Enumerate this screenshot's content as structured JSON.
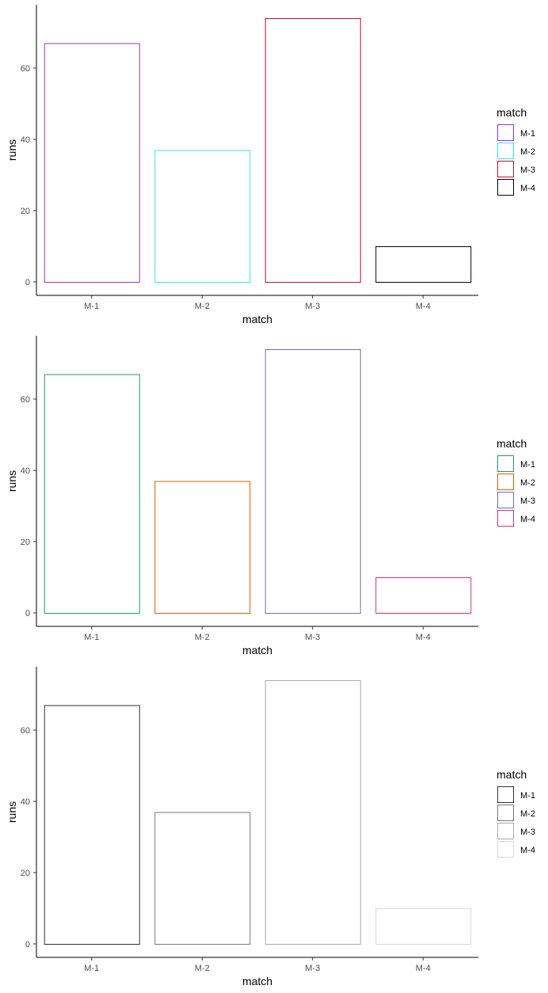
{
  "chart_data": [
    {
      "type": "bar",
      "categories": [
        "M-1",
        "M-2",
        "M-3",
        "M-4"
      ],
      "values": [
        67,
        37,
        74,
        10
      ],
      "colors": [
        "#9b30d0",
        "#33e6f0",
        "#c8102e",
        "#000033"
      ],
      "xlabel": "match",
      "ylabel": "runs",
      "ylim": [
        0,
        78
      ],
      "yticks": [
        0,
        20,
        40,
        60
      ],
      "fill": "none",
      "grid": false,
      "legend": {
        "title": "match",
        "labels": [
          "M-1",
          "M-2",
          "M-3",
          "M-4"
        ],
        "position": "right"
      }
    },
    {
      "type": "bar",
      "categories": [
        "M-1",
        "M-2",
        "M-3",
        "M-4"
      ],
      "values": [
        67,
        37,
        74,
        10
      ],
      "colors": [
        "#1b9e77",
        "#d95f02",
        "#7570b3",
        "#e7298a"
      ],
      "xlabel": "match",
      "ylabel": "runs",
      "ylim": [
        0,
        78
      ],
      "yticks": [
        0,
        20,
        40,
        60
      ],
      "fill": "none",
      "grid": false,
      "legend": {
        "title": "match",
        "labels": [
          "M-1",
          "M-2",
          "M-3",
          "M-4"
        ],
        "position": "right"
      }
    },
    {
      "type": "bar",
      "categories": [
        "M-1",
        "M-2",
        "M-3",
        "M-4"
      ],
      "values": [
        67,
        37,
        74,
        10
      ],
      "colors": [
        "#333333",
        "#777777",
        "#aaaaaa",
        "#d9d9d9"
      ],
      "xlabel": "match",
      "ylabel": "runs",
      "ylim": [
        0,
        78
      ],
      "yticks": [
        0,
        20,
        40,
        60
      ],
      "fill": "none",
      "grid": false,
      "legend": {
        "title": "match",
        "labels": [
          "M-1",
          "M-2",
          "M-3",
          "M-4"
        ],
        "position": "right"
      }
    }
  ]
}
